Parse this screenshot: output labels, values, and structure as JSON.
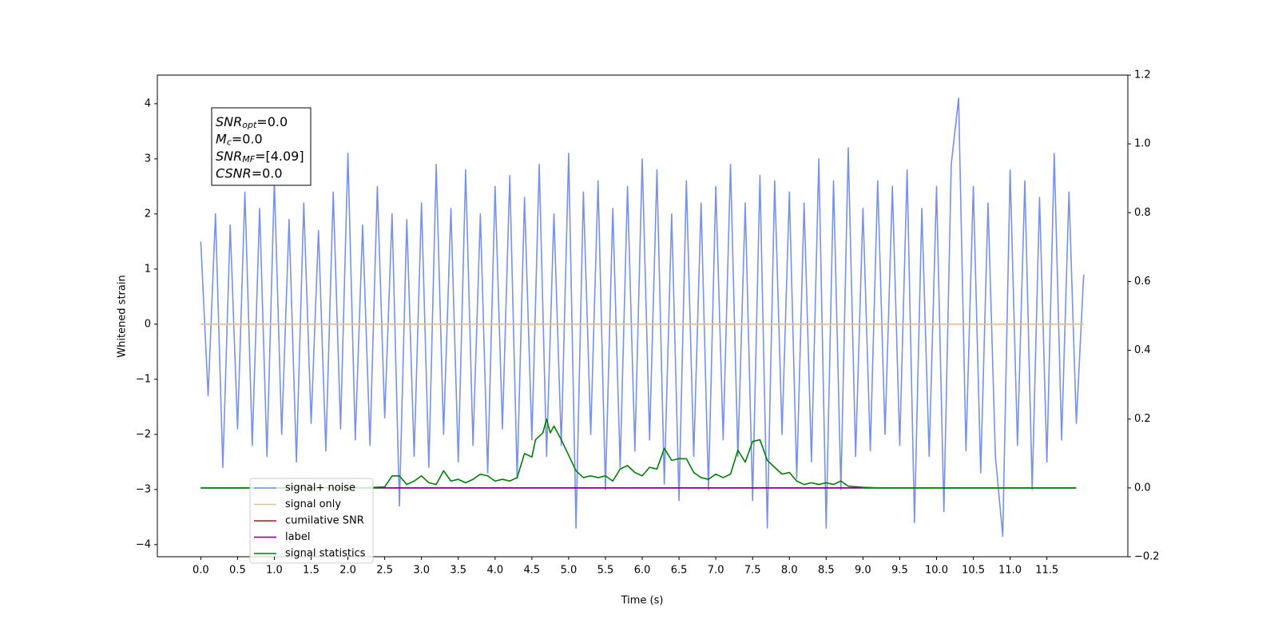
{
  "chart_data": {
    "type": "line",
    "xlabel": "Time (s)",
    "ylabel": "Whitened strain",
    "xlim": [
      -0.59,
      12.6
    ],
    "ylim": [
      -4.22,
      4.52
    ],
    "y2lim": [
      -0.2,
      1.2
    ],
    "xticks": [
      {
        "value": 0,
        "label": "0.0"
      },
      0.5,
      {
        "value": 1,
        "label": "1.0"
      },
      1.5,
      {
        "value": 2,
        "label": "2.0"
      },
      2.5,
      {
        "value": 3,
        "label": "3.0"
      },
      3.5,
      {
        "value": 4,
        "label": "4.0"
      },
      4.5,
      {
        "value": 5,
        "label": "5.0"
      },
      5.5,
      {
        "value": 6,
        "label": "6.0"
      },
      6.5,
      {
        "value": 7,
        "label": "7.0"
      },
      7.5,
      {
        "value": 8,
        "label": "8.0"
      },
      8.5,
      {
        "value": 9,
        "label": "9.0"
      },
      9.5,
      {
        "value": 10,
        "label": "10.0"
      },
      10.5,
      {
        "value": 11,
        "label": "11.0"
      },
      11.5
    ],
    "yticks": [
      {
        "value": -4,
        "label": "−4"
      },
      {
        "value": -3,
        "label": "−3"
      },
      {
        "value": -2,
        "label": "−2"
      },
      {
        "value": -1,
        "label": "−1"
      },
      0,
      1,
      2,
      3,
      4
    ],
    "y2ticks": [
      {
        "value": -0.2,
        "label": "−0.2"
      },
      {
        "value": 0,
        "label": "0.0"
      },
      0.2,
      0.4,
      0.6,
      0.8,
      {
        "value": 1,
        "label": "1.0"
      },
      1.2
    ],
    "legend": "lower left",
    "annotation": [
      {
        "main": "SNR",
        "sub": "opt",
        "value": "=0.0"
      },
      {
        "main": "M",
        "sub": "c",
        "value": "=0.0"
      },
      {
        "main": "SNR",
        "sub": "MF",
        "value": "=[4.09]"
      },
      {
        "main": "CSNR",
        "value": "=0.0"
      }
    ],
    "series": [
      {
        "name": "signal+ noise",
        "color": "#7792e6",
        "x": [
          0.0,
          0.1,
          0.2,
          0.3,
          0.4,
          0.5,
          0.6,
          0.7,
          0.8,
          0.9,
          1.0,
          1.1,
          1.2,
          1.3,
          1.4,
          1.5,
          1.6,
          1.7,
          1.8,
          1.9,
          2.0,
          2.1,
          2.2,
          2.3,
          2.4,
          2.5,
          2.6,
          2.7,
          2.8,
          2.9,
          3.0,
          3.1,
          3.2,
          3.3,
          3.4,
          3.5,
          3.6,
          3.7,
          3.8,
          3.9,
          4.0,
          4.1,
          4.2,
          4.3,
          4.4,
          4.5,
          4.6,
          4.7,
          4.8,
          4.9,
          5.0,
          5.1,
          5.2,
          5.3,
          5.4,
          5.5,
          5.6,
          5.7,
          5.8,
          5.9,
          6.0,
          6.1,
          6.2,
          6.3,
          6.4,
          6.5,
          6.6,
          6.7,
          6.8,
          6.9,
          7.0,
          7.1,
          7.2,
          7.3,
          7.4,
          7.5,
          7.6,
          7.7,
          7.8,
          7.9,
          8.0,
          8.1,
          8.2,
          8.3,
          8.4,
          8.5,
          8.6,
          8.7,
          8.8,
          8.9,
          9.0,
          9.1,
          9.2,
          9.3,
          9.4,
          9.5,
          9.6,
          9.7,
          9.8,
          9.9,
          10.0,
          10.1,
          10.2,
          10.3,
          10.4,
          10.5,
          10.6,
          10.7,
          10.8,
          10.9,
          11.0,
          11.1,
          11.2,
          11.3,
          11.4,
          11.5,
          11.6,
          11.7,
          11.8,
          11.9,
          12.0
        ],
        "values": [
          1.5,
          -1.3,
          2.0,
          -2.6,
          1.8,
          -1.9,
          2.4,
          -2.2,
          2.1,
          -2.4,
          2.6,
          -2.0,
          1.9,
          -2.5,
          2.2,
          -1.8,
          1.7,
          -2.3,
          2.4,
          -1.9,
          3.1,
          -2.1,
          1.8,
          -2.2,
          2.5,
          -1.7,
          2.0,
          -3.3,
          1.9,
          -2.4,
          2.2,
          -2.6,
          2.9,
          -2.0,
          2.1,
          -2.5,
          2.8,
          -2.2,
          2.0,
          -2.7,
          2.5,
          -1.9,
          2.7,
          -2.8,
          2.3,
          -2.1,
          2.9,
          -2.4,
          2.0,
          -2.2,
          3.1,
          -3.7,
          2.4,
          -2.0,
          2.6,
          -3.0,
          2.1,
          -2.6,
          2.5,
          -2.3,
          3.0,
          -2.1,
          2.8,
          -2.9,
          2.0,
          -3.2,
          2.6,
          -2.4,
          2.2,
          -3.0,
          2.5,
          -2.1,
          2.9,
          -2.4,
          2.2,
          -3.2,
          2.7,
          -3.7,
          2.6,
          -2.0,
          2.4,
          -2.8,
          2.2,
          -2.5,
          3.0,
          -3.7,
          2.6,
          -3.0,
          3.2,
          -2.4,
          2.1,
          -2.3,
          2.6,
          -2.0,
          2.5,
          -2.2,
          2.8,
          -3.6,
          2.1,
          -2.4,
          2.5,
          -3.4,
          2.9,
          4.1,
          -2.3,
          2.5,
          -2.7,
          2.2,
          -2.4,
          -3.85,
          2.8,
          -2.2,
          2.6,
          -3.0,
          2.3,
          -2.5,
          3.1,
          -2.1,
          2.4,
          -1.8,
          0.9
        ]
      },
      {
        "name": "signal only",
        "color": "#f5bd6e",
        "x": [
          0,
          12
        ],
        "values": [
          0,
          0
        ]
      },
      {
        "name": "cumilative SNR",
        "color": "#e8000b",
        "axis": "y2",
        "x": [
          0,
          11.9
        ],
        "values": [
          0,
          0
        ]
      },
      {
        "name": "label",
        "color": "#800080",
        "axis": "y2",
        "x": [
          0,
          11.9
        ],
        "values": [
          0,
          0
        ]
      },
      {
        "name": "signal statistics",
        "color": "#008000",
        "axis": "y2",
        "x": [
          0,
          2.2,
          2.5,
          2.6,
          2.7,
          2.8,
          2.9,
          3.0,
          3.1,
          3.2,
          3.3,
          3.4,
          3.5,
          3.6,
          3.7,
          3.8,
          3.9,
          4.0,
          4.1,
          4.2,
          4.3,
          4.4,
          4.5,
          4.55,
          4.65,
          4.7,
          4.75,
          4.8,
          4.9,
          5.0,
          5.1,
          5.2,
          5.3,
          5.4,
          5.5,
          5.6,
          5.7,
          5.8,
          5.9,
          6.0,
          6.1,
          6.2,
          6.3,
          6.4,
          6.5,
          6.6,
          6.7,
          6.8,
          6.9,
          7.0,
          7.1,
          7.2,
          7.3,
          7.4,
          7.5,
          7.6,
          7.7,
          7.8,
          7.9,
          8.0,
          8.1,
          8.2,
          8.3,
          8.4,
          8.5,
          8.6,
          8.7,
          8.8,
          9.0,
          9.2,
          11.9
        ],
        "values": [
          0,
          0,
          0.003,
          0.035,
          0.035,
          0.01,
          0.02,
          0.035,
          0.015,
          0.01,
          0.05,
          0.02,
          0.025,
          0.015,
          0.025,
          0.04,
          0.035,
          0.02,
          0.025,
          0.02,
          0.03,
          0.1,
          0.09,
          0.14,
          0.16,
          0.2,
          0.16,
          0.18,
          0.14,
          0.095,
          0.05,
          0.03,
          0.035,
          0.03,
          0.035,
          0.02,
          0.055,
          0.065,
          0.045,
          0.035,
          0.06,
          0.055,
          0.115,
          0.08,
          0.085,
          0.085,
          0.045,
          0.03,
          0.025,
          0.04,
          0.03,
          0.04,
          0.11,
          0.075,
          0.135,
          0.14,
          0.08,
          0.06,
          0.04,
          0.045,
          0.02,
          0.01,
          0.015,
          0.01,
          0.015,
          0.01,
          0.02,
          0.005,
          0.002,
          0,
          0
        ]
      }
    ]
  }
}
